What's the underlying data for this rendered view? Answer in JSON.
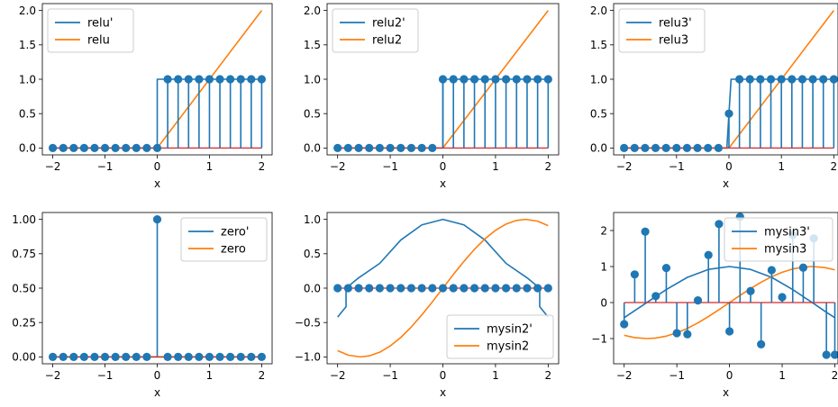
{
  "figure": {
    "background": "#ffffff",
    "series_colors": [
      "#1f77b4",
      "#ff7f0e"
    ]
  },
  "chart_data": [
    {
      "type": "line+stem",
      "xlabel": "x",
      "xlim": [
        -2.2,
        2.2
      ],
      "ylim": [
        -0.1,
        2.1
      ],
      "xticks": [
        -2,
        -1,
        0,
        1,
        2
      ],
      "xtick_labels": [
        "−2",
        "−1",
        "0",
        "1",
        "2"
      ],
      "yticks": [
        0,
        0.5,
        1,
        1.5,
        2
      ],
      "ytick_labels": [
        "0.0",
        "0.5",
        "1.0",
        "1.5",
        "2.0"
      ],
      "legend": {
        "position": "top-left",
        "entries": [
          "relu'",
          "relu"
        ]
      },
      "series": [
        {
          "name": "relu'",
          "style": "step-line",
          "color": "#1f77b4",
          "x": [
            -2,
            0,
            0,
            2
          ],
          "y": [
            0,
            0,
            1,
            1
          ]
        },
        {
          "name": "relu",
          "style": "line",
          "color": "#ff7f0e",
          "x": [
            -2,
            0,
            2
          ],
          "y": [
            0,
            0,
            2
          ]
        }
      ],
      "stem": {
        "color": "#1f77b4",
        "x": [
          -2,
          -1.8,
          -1.6,
          -1.4,
          -1.2,
          -1,
          -0.8,
          -0.6,
          -0.4,
          -0.2,
          0,
          0.2,
          0.4,
          0.6,
          0.8,
          1,
          1.2,
          1.4,
          1.6,
          1.8,
          2
        ],
        "y": [
          0,
          0,
          0,
          0,
          0,
          0,
          0,
          0,
          0,
          0,
          0,
          1,
          1,
          1,
          1,
          1,
          1,
          1,
          1,
          1,
          1
        ]
      }
    },
    {
      "type": "line+stem",
      "xlabel": "x",
      "xlim": [
        -2.2,
        2.2
      ],
      "ylim": [
        -0.1,
        2.1
      ],
      "xticks": [
        -2,
        -1,
        0,
        1,
        2
      ],
      "xtick_labels": [
        "−2",
        "−1",
        "0",
        "1",
        "2"
      ],
      "yticks": [
        0,
        0.5,
        1,
        1.5,
        2
      ],
      "ytick_labels": [
        "0.0",
        "0.5",
        "1.0",
        "1.5",
        "2.0"
      ],
      "legend": {
        "position": "top-left",
        "entries": [
          "relu2'",
          "relu2"
        ]
      },
      "series": [
        {
          "name": "relu2'",
          "style": "step-line",
          "color": "#1f77b4",
          "x": [
            -2,
            0,
            0,
            2
          ],
          "y": [
            0,
            0,
            1,
            1
          ]
        },
        {
          "name": "relu2",
          "style": "line",
          "color": "#ff7f0e",
          "x": [
            -2,
            0,
            2
          ],
          "y": [
            0,
            0,
            2
          ]
        }
      ],
      "stem": {
        "color": "#1f77b4",
        "x": [
          -2,
          -1.8,
          -1.6,
          -1.4,
          -1.2,
          -1,
          -0.8,
          -0.6,
          -0.4,
          -0.2,
          0,
          0.2,
          0.4,
          0.6,
          0.8,
          1,
          1.2,
          1.4,
          1.6,
          1.8,
          2
        ],
        "y": [
          0,
          0,
          0,
          0,
          0,
          0,
          0,
          0,
          0,
          0,
          1,
          1,
          1,
          1,
          1,
          1,
          1,
          1,
          1,
          1,
          1
        ]
      }
    },
    {
      "type": "line+stem",
      "xlabel": "x",
      "xlim": [
        -2.2,
        2.08
      ],
      "ylim": [
        -0.1,
        2.1
      ],
      "xticks": [
        -2,
        -1,
        0,
        1,
        2
      ],
      "xtick_labels": [
        "−2",
        "−1",
        "0",
        "1",
        "2"
      ],
      "yticks": [
        0,
        0.5,
        1,
        1.5,
        2
      ],
      "ytick_labels": [
        "0.0",
        "0.5",
        "1.0",
        "1.5",
        "2.0"
      ],
      "legend": {
        "position": "top-left",
        "entries": [
          "relu3'",
          "relu3"
        ]
      },
      "series": [
        {
          "name": "relu3'",
          "style": "step-line",
          "color": "#1f77b4",
          "x": [
            -2,
            -0.04,
            0.04,
            2
          ],
          "y": [
            0,
            0,
            1,
            1
          ]
        },
        {
          "name": "relu3",
          "style": "line",
          "color": "#ff7f0e",
          "x": [
            -2,
            0,
            2
          ],
          "y": [
            0,
            0,
            2
          ]
        }
      ],
      "stem": {
        "color": "#1f77b4",
        "x": [
          -2,
          -1.8,
          -1.6,
          -1.4,
          -1.2,
          -1,
          -0.8,
          -0.6,
          -0.4,
          -0.2,
          0,
          0.2,
          0.4,
          0.6,
          0.8,
          1,
          1.2,
          1.4,
          1.6,
          1.8,
          2
        ],
        "y": [
          0,
          0,
          0,
          0,
          0,
          0,
          0,
          0,
          0,
          0,
          0.5,
          1,
          1,
          1,
          1,
          1,
          1,
          1,
          1,
          1,
          1
        ]
      }
    },
    {
      "type": "line+stem",
      "xlabel": "x",
      "xlim": [
        -2.2,
        2.2
      ],
      "ylim": [
        -0.05,
        1.05
      ],
      "xticks": [
        -2,
        -1,
        0,
        1,
        2
      ],
      "xtick_labels": [
        "−2",
        "−1",
        "0",
        "1",
        "2"
      ],
      "yticks": [
        0,
        0.25,
        0.5,
        0.75,
        1
      ],
      "ytick_labels": [
        "0.00",
        "0.25",
        "0.50",
        "0.75",
        "1.00"
      ],
      "legend": {
        "position": "top-right",
        "entries": [
          "zero'",
          "zero"
        ]
      },
      "series": [
        {
          "name": "zero'",
          "style": "line",
          "color": "#1f77b4",
          "x": [
            -2,
            2
          ],
          "y": [
            0,
            0
          ]
        },
        {
          "name": "zero",
          "style": "line",
          "color": "#ff7f0e",
          "x": [
            -2,
            2
          ],
          "y": [
            0,
            0
          ]
        }
      ],
      "stem": {
        "color": "#1f77b4",
        "x": [
          -2,
          -1.8,
          -1.6,
          -1.4,
          -1.2,
          -1,
          -0.8,
          -0.6,
          -0.4,
          -0.2,
          0,
          0.2,
          0.4,
          0.6,
          0.8,
          1,
          1.2,
          1.4,
          1.6,
          1.8,
          2
        ],
        "y": [
          0,
          0,
          0,
          0,
          0,
          0,
          0,
          0,
          0,
          0,
          1,
          0,
          0,
          0,
          0,
          0,
          0,
          0,
          0,
          0,
          0
        ]
      }
    },
    {
      "type": "line+stem",
      "xlabel": "x",
      "xlim": [
        -2.2,
        2.2
      ],
      "ylim": [
        -1.1,
        1.1
      ],
      "xticks": [
        -2,
        -1,
        0,
        1,
        2
      ],
      "xtick_labels": [
        "−2",
        "−1",
        "0",
        "1",
        "2"
      ],
      "yticks": [
        -1,
        -0.5,
        0,
        0.5,
        1
      ],
      "ytick_labels": [
        "−1.0",
        "−0.5",
        "0.0",
        "0.5",
        "1.0"
      ],
      "legend": {
        "position": "bottom-right",
        "entries": [
          "mysin2'",
          "mysin2"
        ]
      },
      "series": [
        {
          "name": "mysin2'",
          "style": "line",
          "color": "#1f77b4",
          "x": [
            -2,
            -1.84,
            -1.84,
            -1.6,
            -1.2,
            -0.8,
            -0.4,
            0,
            0.4,
            0.8,
            1.2,
            1.6,
            1.84,
            1.84,
            2
          ],
          "y": [
            -0.42,
            -0.27,
            0.0,
            0.15,
            0.36,
            0.7,
            0.92,
            1.0,
            0.92,
            0.7,
            0.36,
            0.15,
            0.0,
            -0.27,
            -0.42
          ]
        },
        {
          "name": "mysin2",
          "style": "line",
          "color": "#ff7f0e",
          "x": [
            -2,
            -1.8,
            -1.57,
            -1.4,
            -1.2,
            -1,
            -0.8,
            -0.6,
            -0.4,
            -0.2,
            0,
            0.2,
            0.4,
            0.6,
            0.8,
            1,
            1.2,
            1.4,
            1.57,
            1.8,
            2
          ],
          "y": [
            -0.909,
            -0.974,
            -1.0,
            -0.985,
            -0.932,
            -0.841,
            -0.717,
            -0.565,
            -0.389,
            -0.199,
            0,
            0.199,
            0.389,
            0.565,
            0.717,
            0.841,
            0.932,
            0.985,
            1.0,
            0.974,
            0.909
          ]
        }
      ],
      "stem": {
        "color": "#1f77b4",
        "x": [
          -2,
          -1.8,
          -1.6,
          -1.4,
          -1.2,
          -1,
          -0.8,
          -0.6,
          -0.4,
          -0.2,
          0,
          0.2,
          0.4,
          0.6,
          0.8,
          1,
          1.2,
          1.4,
          1.6,
          1.8,
          2
        ],
        "y": [
          0,
          0,
          0,
          0,
          0,
          0,
          0,
          0,
          0,
          0,
          0,
          0,
          0,
          0,
          0,
          0,
          0,
          0,
          0,
          0,
          0
        ]
      }
    },
    {
      "type": "line+stem",
      "xlabel": "x",
      "xlim": [
        -2.2,
        2.06
      ],
      "ylim": [
        -1.7,
        2.5
      ],
      "xticks": [
        -2,
        -1,
        0,
        1,
        2
      ],
      "xtick_labels": [
        "−2",
        "−1",
        "0",
        "1",
        "2"
      ],
      "yticks": [
        -1,
        0,
        1,
        2
      ],
      "ytick_labels": [
        "−1",
        "0",
        "1",
        "2"
      ],
      "legend": {
        "position": "top-right",
        "entries": [
          "mysin3'",
          "mysin3"
        ]
      },
      "series": [
        {
          "name": "mysin3'",
          "style": "line",
          "color": "#1f77b4",
          "x": [
            -2,
            -1.6,
            -1.2,
            -0.8,
            -0.4,
            0,
            0.4,
            0.8,
            1.2,
            1.6,
            1.84,
            1.84,
            2
          ],
          "y": [
            -0.42,
            -0.03,
            0.36,
            0.7,
            0.92,
            1.0,
            0.92,
            0.7,
            0.36,
            -0.03,
            -0.27,
            -0.27,
            -0.42
          ]
        },
        {
          "name": "mysin3",
          "style": "line",
          "color": "#ff7f0e",
          "x": [
            -2,
            -1.8,
            -1.57,
            -1.4,
            -1.2,
            -1,
            -0.8,
            -0.6,
            -0.4,
            -0.2,
            0,
            0.2,
            0.4,
            0.6,
            0.8,
            1,
            1.2,
            1.4,
            1.57,
            1.8,
            2
          ],
          "y": [
            -0.909,
            -0.974,
            -1.0,
            -0.985,
            -0.932,
            -0.841,
            -0.717,
            -0.565,
            -0.389,
            -0.199,
            0,
            0.199,
            0.389,
            0.565,
            0.717,
            0.841,
            0.932,
            0.985,
            1.0,
            0.974,
            0.909
          ]
        }
      ],
      "stem": {
        "color": "#1f77b4",
        "x": [
          -2,
          -1.8,
          -1.6,
          -1.4,
          -1.2,
          -1,
          -0.8,
          -0.6,
          -0.4,
          -0.2,
          0,
          0.2,
          0.4,
          0.6,
          0.8,
          1,
          1.2,
          1.4,
          1.6,
          1.84,
          2
        ],
        "y": [
          -0.6,
          0.78,
          1.97,
          0.18,
          0.96,
          -0.85,
          -0.88,
          0.06,
          1.32,
          2.18,
          -0.8,
          2.38,
          0.32,
          -1.16,
          0.9,
          0.15,
          1.88,
          0.97,
          1.78,
          -1.45,
          -1.45
        ]
      }
    }
  ]
}
